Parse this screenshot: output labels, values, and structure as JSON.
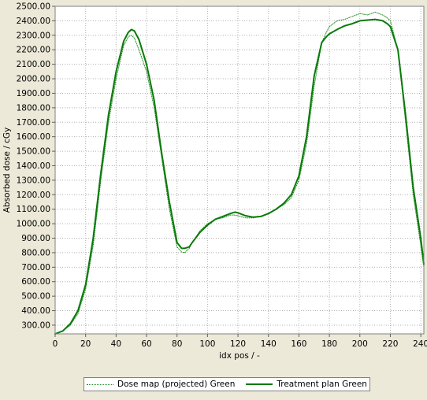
{
  "chart_data": {
    "type": "line",
    "xlabel": "idx pos / -",
    "ylabel": "Absorbed dose / cGy",
    "xlim": [
      0,
      242
    ],
    "ylim": [
      240,
      2500
    ],
    "x_ticks": [
      "0",
      "20",
      "40",
      "60",
      "80",
      "100",
      "120",
      "140",
      "160",
      "180",
      "200",
      "220",
      "240"
    ],
    "y_ticks": [
      "300.00",
      "400.00",
      "500.00",
      "600.00",
      "700.00",
      "800.00",
      "900.00",
      "1000.00",
      "1100.00",
      "1200.00",
      "1300.00",
      "1400.00",
      "1500.00",
      "1600.00",
      "1700.00",
      "1800.00",
      "1900.00",
      "2000.00",
      "2100.00",
      "2200.00",
      "2300.00",
      "2400.00",
      "2500.00"
    ],
    "grid": true,
    "legend_position": "bottom-center",
    "series": [
      {
        "name": "Dose map (projected) Green",
        "style": "dotted",
        "color": "#1e8a1e",
        "x": [
          0,
          5,
          10,
          15,
          20,
          25,
          30,
          35,
          40,
          45,
          48,
          50,
          52,
          55,
          60,
          65,
          70,
          75,
          80,
          83,
          85,
          88,
          90,
          95,
          100,
          105,
          110,
          115,
          118,
          120,
          125,
          130,
          135,
          140,
          145,
          150,
          155,
          160,
          165,
          170,
          175,
          178,
          180,
          185,
          190,
          195,
          200,
          205,
          210,
          215,
          218,
          220,
          225,
          230,
          235,
          240,
          242
        ],
        "y": [
          240,
          260,
          300,
          380,
          550,
          850,
          1300,
          1700,
          2000,
          2230,
          2290,
          2300,
          2280,
          2200,
          2050,
          1800,
          1450,
          1100,
          840,
          805,
          800,
          830,
          870,
          950,
          1000,
          1030,
          1040,
          1060,
          1060,
          1055,
          1040,
          1040,
          1050,
          1070,
          1100,
          1130,
          1180,
          1300,
          1550,
          1950,
          2250,
          2320,
          2360,
          2400,
          2410,
          2430,
          2450,
          2440,
          2460,
          2440,
          2420,
          2400,
          2200,
          1700,
          1200,
          850,
          700
        ]
      },
      {
        "name": "Treatment plan Green",
        "style": "solid",
        "color": "#0a7a0a",
        "x": [
          0,
          5,
          10,
          15,
          20,
          25,
          30,
          35,
          40,
          45,
          48,
          50,
          52,
          55,
          60,
          65,
          70,
          75,
          80,
          83,
          85,
          88,
          90,
          95,
          100,
          105,
          110,
          115,
          118,
          120,
          125,
          130,
          135,
          140,
          145,
          150,
          155,
          160,
          165,
          170,
          175,
          178,
          180,
          185,
          190,
          195,
          200,
          205,
          210,
          215,
          218,
          220,
          225,
          230,
          235,
          240,
          242
        ],
        "y": [
          240,
          260,
          310,
          400,
          580,
          900,
          1350,
          1750,
          2050,
          2260,
          2320,
          2340,
          2330,
          2270,
          2100,
          1850,
          1480,
          1150,
          870,
          830,
          830,
          840,
          870,
          940,
          990,
          1030,
          1050,
          1070,
          1080,
          1075,
          1055,
          1045,
          1050,
          1070,
          1100,
          1140,
          1200,
          1330,
          1600,
          2020,
          2250,
          2290,
          2310,
          2340,
          2365,
          2380,
          2400,
          2405,
          2410,
          2400,
          2380,
          2360,
          2200,
          1750,
          1250,
          900,
          720
        ]
      }
    ]
  }
}
